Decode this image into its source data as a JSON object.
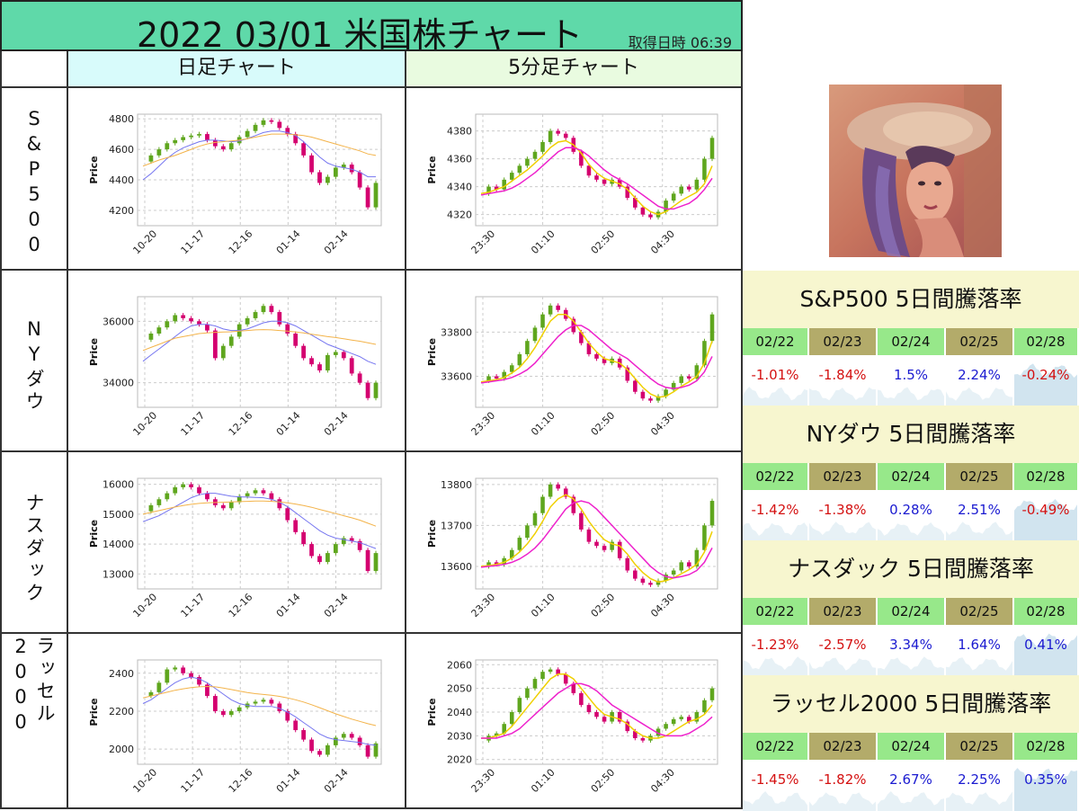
{
  "title": {
    "main": "2022 03/01  米国株チャート",
    "time": "取得日時 06:39"
  },
  "headers": {
    "daily": "日足チャート",
    "min5": "5分足チャート"
  },
  "colors": {
    "title_bg": "#5fd9a9",
    "daily_hdr": "#d8fbfb",
    "min5_hdr": "#e9fbe0",
    "up": "#5fa61e",
    "down": "#d4006f",
    "ma_short": "#7676f0",
    "ma_long": "#f3b34a",
    "ma5_fast": "#f0d000",
    "ma5_slow": "#ee22cc",
    "date_green": "#97e88a",
    "date_olive": "#b3ab6a",
    "rate_head_bg": "#f7f6cf"
  },
  "rows": [
    {
      "label": "S&P500"
    },
    {
      "label": "NYダウ"
    },
    {
      "label": "ナスダック"
    },
    {
      "label": "ラッセル2000"
    }
  ],
  "chart_data": [
    {
      "type": "line",
      "name": "S&P500 日足",
      "ylabel": "Price",
      "ylim": [
        4100,
        4830
      ],
      "yticks": [
        4200,
        4400,
        4600,
        4800
      ],
      "xticklabels": [
        "10-20",
        "11-17",
        "12-16",
        "01-14",
        "02-14"
      ],
      "close": [
        4520,
        4560,
        4600,
        4640,
        4660,
        4680,
        4690,
        4700,
        4660,
        4620,
        4600,
        4640,
        4680,
        4720,
        4760,
        4790,
        4780,
        4740,
        4700,
        4640,
        4560,
        4450,
        4380,
        4420,
        4480,
        4500,
        4450,
        4350,
        4220,
        4380
      ],
      "ma_short": [
        4400,
        4440,
        4490,
        4540,
        4580,
        4610,
        4630,
        4650,
        4660,
        4660,
        4655,
        4650,
        4655,
        4670,
        4690,
        4710,
        4720,
        4720,
        4710,
        4690,
        4650,
        4600,
        4550,
        4510,
        4490,
        4480,
        4470,
        4450,
        4420,
        4420
      ],
      "ma_long": [
        4490,
        4510,
        4530,
        4545,
        4560,
        4580,
        4600,
        4620,
        4635,
        4645,
        4650,
        4655,
        4660,
        4670,
        4680,
        4690,
        4700,
        4700,
        4700,
        4695,
        4690,
        4680,
        4665,
        4650,
        4635,
        4620,
        4605,
        4590,
        4570,
        4560
      ]
    },
    {
      "type": "line",
      "name": "S&P500 5分足",
      "ylabel": "Price",
      "ylim": [
        4312,
        4392
      ],
      "yticks": [
        4320,
        4340,
        4360,
        4380
      ],
      "xticklabels": [
        "23:30",
        "01:10",
        "02:50",
        "04:30"
      ],
      "close": [
        4335,
        4340,
        4338,
        4345,
        4350,
        4355,
        4360,
        4365,
        4372,
        4380,
        4378,
        4375,
        4365,
        4355,
        4348,
        4345,
        4342,
        4345,
        4340,
        4332,
        4325,
        4320,
        4318,
        4322,
        4330,
        4335,
        4340,
        4338,
        4345,
        4360,
        4375
      ],
      "ma_short": [
        4335,
        4336,
        4338,
        4340,
        4344,
        4348,
        4352,
        4357,
        4362,
        4368,
        4372,
        4373,
        4370,
        4364,
        4356,
        4350,
        4346,
        4344,
        4342,
        4338,
        4332,
        4326,
        4322,
        4320,
        4322,
        4326,
        4330,
        4333,
        4336,
        4342,
        4355
      ],
      "ma_long": [
        4334,
        4335,
        4336,
        4337,
        4339,
        4342,
        4346,
        4350,
        4355,
        4360,
        4365,
        4368,
        4368,
        4366,
        4362,
        4357,
        4352,
        4348,
        4345,
        4342,
        4338,
        4334,
        4330,
        4326,
        4324,
        4324,
        4326,
        4328,
        4332,
        4338,
        4346
      ]
    },
    {
      "type": "line",
      "name": "NYダウ 日足",
      "ylabel": "Price",
      "ylim": [
        33200,
        36800
      ],
      "yticks": [
        34000,
        36000
      ],
      "xticklabels": [
        "10-20",
        "11-17",
        "12-16",
        "01-14",
        "02-14"
      ],
      "close": [
        35400,
        35600,
        35800,
        36000,
        36200,
        36100,
        36000,
        35900,
        35700,
        34800,
        35200,
        35500,
        35900,
        36100,
        36300,
        36500,
        36300,
        35900,
        35600,
        35200,
        34800,
        34600,
        34400,
        34900,
        35000,
        34800,
        34300,
        34000,
        33500,
        34000
      ],
      "ma_short": [
        34700,
        34900,
        35100,
        35300,
        35500,
        35700,
        35850,
        35900,
        35900,
        35850,
        35750,
        35700,
        35700,
        35750,
        35850,
        35950,
        36000,
        36000,
        35950,
        35850,
        35700,
        35550,
        35400,
        35250,
        35150,
        35050,
        34950,
        34850,
        34700,
        34600
      ],
      "ma_long": [
        35050,
        35150,
        35250,
        35350,
        35450,
        35500,
        35550,
        35600,
        35620,
        35640,
        35650,
        35660,
        35680,
        35700,
        35720,
        35730,
        35720,
        35700,
        35680,
        35650,
        35620,
        35580,
        35540,
        35500,
        35470,
        35430,
        35390,
        35350,
        35300,
        35250
      ]
    },
    {
      "type": "line",
      "name": "NYダウ 5分足",
      "ylabel": "Price",
      "ylim": [
        33460,
        33960
      ],
      "yticks": [
        33600,
        33800
      ],
      "xticklabels": [
        "23:30",
        "01:10",
        "02:50",
        "04:30"
      ],
      "close": [
        33580,
        33600,
        33590,
        33620,
        33650,
        33700,
        33760,
        33820,
        33880,
        33920,
        33900,
        33860,
        33800,
        33750,
        33700,
        33680,
        33660,
        33680,
        33640,
        33580,
        33530,
        33500,
        33490,
        33510,
        33540,
        33570,
        33600,
        33590,
        33650,
        33760,
        33880
      ],
      "ma_short": [
        33575,
        33580,
        33585,
        33595,
        33615,
        33640,
        33680,
        33730,
        33790,
        33850,
        33880,
        33880,
        33850,
        33800,
        33750,
        33710,
        33680,
        33670,
        33660,
        33630,
        33590,
        33550,
        33520,
        33505,
        33510,
        33530,
        33555,
        33575,
        33600,
        33660,
        33760
      ],
      "ma_long": [
        33570,
        33575,
        33580,
        33585,
        33595,
        33610,
        33630,
        33660,
        33700,
        33740,
        33780,
        33810,
        33830,
        33830,
        33810,
        33780,
        33750,
        33720,
        33700,
        33680,
        33650,
        33620,
        33590,
        33565,
        33550,
        33545,
        33550,
        33560,
        33580,
        33620,
        33690
      ]
    },
    {
      "type": "line",
      "name": "ナスダック 日足",
      "ylabel": "Price",
      "ylim": [
        12500,
        16200
      ],
      "yticks": [
        13000,
        14000,
        15000,
        16000
      ],
      "xticklabels": [
        "10-20",
        "11-17",
        "12-16",
        "01-14",
        "02-14"
      ],
      "close": [
        15100,
        15300,
        15500,
        15700,
        15900,
        16000,
        15900,
        15700,
        15500,
        15300,
        15200,
        15400,
        15600,
        15700,
        15800,
        15700,
        15500,
        15200,
        14800,
        14400,
        14000,
        13600,
        13400,
        13700,
        14000,
        14200,
        14100,
        13800,
        13100,
        13700
      ],
      "ma_short": [
        14750,
        14850,
        14950,
        15100,
        15250,
        15400,
        15550,
        15650,
        15700,
        15700,
        15650,
        15600,
        15580,
        15570,
        15560,
        15550,
        15500,
        15400,
        15250,
        15050,
        14850,
        14650,
        14450,
        14300,
        14200,
        14150,
        14100,
        14050,
        13950,
        13850
      ],
      "ma_long": [
        15000,
        15060,
        15120,
        15180,
        15240,
        15290,
        15330,
        15360,
        15380,
        15390,
        15400,
        15410,
        15420,
        15430,
        15440,
        15440,
        15430,
        15410,
        15380,
        15340,
        15290,
        15230,
        15160,
        15090,
        15020,
        14950,
        14880,
        14800,
        14700,
        14600
      ]
    },
    {
      "type": "line",
      "name": "ナスダック 5分足",
      "ylabel": "Price",
      "ylim": [
        13545,
        13815
      ],
      "yticks": [
        13600,
        13700,
        13800
      ],
      "xticklabels": [
        "23:30",
        "01:10",
        "02:50",
        "04:30"
      ],
      "close": [
        13600,
        13610,
        13605,
        13620,
        13640,
        13670,
        13700,
        13730,
        13770,
        13800,
        13790,
        13770,
        13730,
        13690,
        13660,
        13650,
        13640,
        13660,
        13620,
        13590,
        13570,
        13560,
        13555,
        13565,
        13580,
        13590,
        13610,
        13600,
        13640,
        13700,
        13760
      ],
      "ma_short": [
        13600,
        13602,
        13605,
        13610,
        13620,
        13635,
        13655,
        13680,
        13710,
        13745,
        13765,
        13775,
        13765,
        13740,
        13710,
        13685,
        13665,
        13655,
        13650,
        13630,
        13605,
        13585,
        13570,
        13562,
        13565,
        13572,
        13582,
        13592,
        13605,
        13635,
        13685
      ],
      "ma_long": [
        13598,
        13600,
        13602,
        13605,
        13610,
        13618,
        13630,
        13645,
        13665,
        13690,
        13715,
        13740,
        13755,
        13760,
        13755,
        13740,
        13720,
        13700,
        13680,
        13660,
        13640,
        13620,
        13600,
        13585,
        13575,
        13572,
        13575,
        13580,
        13590,
        13610,
        13645
      ]
    },
    {
      "type": "line",
      "name": "ラッセル2000 日足",
      "ylabel": "Price",
      "ylim": [
        1920,
        2470
      ],
      "yticks": [
        2000,
        2200,
        2400
      ],
      "xticklabels": [
        "10-20",
        "11-17",
        "12-16",
        "01-14",
        "02-14"
      ],
      "close": [
        2280,
        2300,
        2350,
        2420,
        2430,
        2400,
        2380,
        2340,
        2280,
        2200,
        2180,
        2200,
        2220,
        2240,
        2250,
        2260,
        2240,
        2200,
        2150,
        2100,
        2050,
        1990,
        1970,
        2020,
        2060,
        2080,
        2060,
        2020,
        1960,
        2030
      ],
      "ma_short": [
        2240,
        2260,
        2290,
        2320,
        2350,
        2370,
        2380,
        2370,
        2350,
        2320,
        2290,
        2260,
        2240,
        2230,
        2225,
        2225,
        2225,
        2215,
        2195,
        2170,
        2140,
        2110,
        2080,
        2060,
        2050,
        2045,
        2040,
        2035,
        2025,
        2020
      ],
      "ma_long": [
        2270,
        2280,
        2290,
        2300,
        2310,
        2318,
        2324,
        2328,
        2330,
        2328,
        2322,
        2314,
        2306,
        2298,
        2292,
        2288,
        2284,
        2278,
        2270,
        2260,
        2248,
        2234,
        2218,
        2202,
        2186,
        2172,
        2158,
        2146,
        2134,
        2124
      ]
    },
    {
      "type": "line",
      "name": "ラッセル2000 5分足",
      "ylabel": "Price",
      "ylim": [
        2018,
        2062
      ],
      "yticks": [
        2020,
        2030,
        2040,
        2050,
        2060
      ],
      "xticklabels": [
        "23:30",
        "01:10",
        "02:50",
        "04:30"
      ],
      "close": [
        2028,
        2030,
        2031,
        2035,
        2040,
        2046,
        2050,
        2054,
        2057,
        2058,
        2056,
        2052,
        2048,
        2043,
        2040,
        2038,
        2036,
        2040,
        2036,
        2032,
        2029,
        2028,
        2030,
        2033,
        2035,
        2037,
        2038,
        2036,
        2040,
        2045,
        2050
      ],
      "ma_short": [
        2029,
        2029,
        2030,
        2031,
        2034,
        2038,
        2042,
        2046,
        2050,
        2054,
        2056,
        2056,
        2054,
        2050,
        2046,
        2042,
        2039,
        2038,
        2037,
        2035,
        2032,
        2030,
        2029,
        2029,
        2030,
        2032,
        2034,
        2036,
        2037,
        2039,
        2043
      ],
      "ma_long": [
        2029,
        2029,
        2029,
        2030,
        2031,
        2033,
        2036,
        2039,
        2042,
        2045,
        2048,
        2050,
        2052,
        2052,
        2051,
        2049,
        2046,
        2043,
        2041,
        2039,
        2037,
        2035,
        2033,
        2031,
        2030,
        2030,
        2030,
        2031,
        2033,
        2035,
        2038
      ]
    }
  ],
  "rates": [
    {
      "title": "S&P500 5日間騰落率",
      "dates": [
        "02/22",
        "02/23",
        "02/24",
        "02/25",
        "02/28"
      ],
      "values": [
        "-1.01%",
        "-1.84%",
        "1.5%",
        "2.24%",
        "-0.24%"
      ]
    },
    {
      "title": "NYダウ 5日間騰落率",
      "dates": [
        "02/22",
        "02/23",
        "02/24",
        "02/25",
        "02/28"
      ],
      "values": [
        "-1.42%",
        "-1.38%",
        "0.28%",
        "2.51%",
        "-0.49%"
      ]
    },
    {
      "title": "ナスダック 5日間騰落率",
      "dates": [
        "02/22",
        "02/23",
        "02/24",
        "02/25",
        "02/28"
      ],
      "values": [
        "-1.23%",
        "-2.57%",
        "3.34%",
        "1.64%",
        "0.41%"
      ]
    },
    {
      "title": "ラッセル2000 5日間騰落率",
      "dates": [
        "02/22",
        "02/23",
        "02/24",
        "02/25",
        "02/28"
      ],
      "values": [
        "-1.45%",
        "-1.82%",
        "2.67%",
        "2.25%",
        "0.35%"
      ]
    }
  ]
}
